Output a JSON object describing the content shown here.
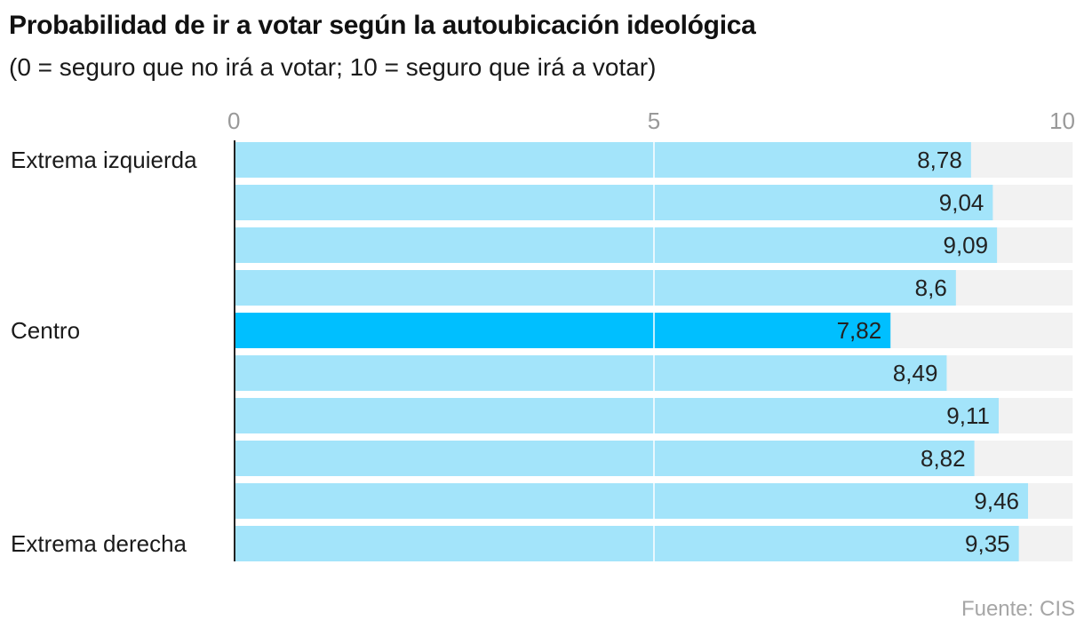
{
  "chart_data": {
    "type": "bar",
    "orientation": "horizontal",
    "title": "Probabilidad de ir a votar según la autoubicación ideológica",
    "subtitle": "(0 = seguro que no irá a votar; 10 = seguro que irá a votar)",
    "categories": [
      "Extrema izquierda",
      "",
      "",
      "",
      "Centro",
      "",
      "",
      "",
      "",
      "Extrema derecha"
    ],
    "values": [
      8.78,
      9.04,
      9.09,
      8.6,
      7.82,
      8.49,
      9.11,
      8.82,
      9.46,
      9.35
    ],
    "value_labels": [
      "8,78",
      "9,04",
      "9,09",
      "8,6",
      "7,82",
      "8,49",
      "9,11",
      "8,82",
      "9,46",
      "9,35"
    ],
    "highlight_index": 4,
    "xlim": [
      0,
      10
    ],
    "xticks": [
      0,
      5,
      10
    ],
    "xtick_labels": [
      "0",
      "5",
      "10"
    ],
    "grid": true,
    "source": "Fuente: CIS"
  },
  "colors": {
    "bar": "#a3e4fa",
    "highlight": "#00bfff",
    "track": "#f2f2f2",
    "tick_text": "#999999",
    "grid": "#ffffff",
    "axis": "#222222"
  }
}
